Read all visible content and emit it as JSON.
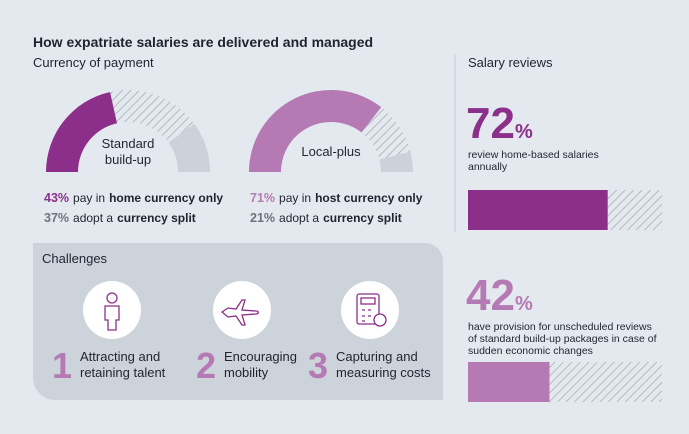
{
  "title": "How expatriate salaries are delivered and managed",
  "currency_heading": "Currency of payment",
  "reviews_heading": "Salary reviews",
  "chart_data": [
    {
      "type": "half-donut",
      "label": [
        "Standard",
        "build-up"
      ],
      "ylim": [
        0,
        100
      ],
      "rest_color": "#ccd2d9",
      "series": [
        {
          "name": "home currency only",
          "prefix": "pay in",
          "color": "#8b2f8a",
          "values": [
            43
          ],
          "value_labels": [
            "43%"
          ]
        },
        {
          "name": "currency split",
          "prefix": "adopt a",
          "color": "#a9afb8",
          "hatch": true,
          "values": [
            37
          ],
          "value_labels": [
            "37%"
          ]
        }
      ]
    },
    {
      "type": "half-donut",
      "label": [
        "Local-plus"
      ],
      "ylim": [
        0,
        100
      ],
      "rest_color": "#ccd2d9",
      "series": [
        {
          "name": "host currency only",
          "prefix": "pay in",
          "color": "#b57ab3",
          "values": [
            71
          ],
          "value_labels": [
            "71%"
          ]
        },
        {
          "name": "currency split",
          "prefix": "adopt a",
          "color": "#a9afb8",
          "hatch": true,
          "values": [
            21
          ],
          "value_labels": [
            "21%"
          ]
        }
      ]
    },
    {
      "type": "bar",
      "values": [
        72
      ],
      "value_labels": [
        "72%"
      ],
      "color": "#8b2f8a",
      "xlim": [
        0,
        100
      ],
      "description": [
        "review home-based salaries",
        "annually"
      ]
    },
    {
      "type": "bar",
      "values": [
        42
      ],
      "value_labels": [
        "42%"
      ],
      "color": "#b57ab3",
      "xlim": [
        0,
        100
      ],
      "description": [
        "have provision for unscheduled reviews",
        "of standard build-up packages in case of",
        "sudden economic changes"
      ]
    }
  ],
  "challenges": {
    "title": "Challenges",
    "items": [
      {
        "number": "1",
        "label": [
          "Attracting and",
          "retaining talent"
        ]
      },
      {
        "number": "2",
        "label": [
          "Encouraging",
          "mobility"
        ]
      },
      {
        "number": "3",
        "label": [
          "Capturing and",
          "measuring costs"
        ]
      }
    ]
  }
}
